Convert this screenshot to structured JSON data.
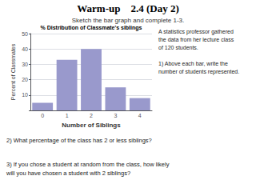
{
  "chart_data": {
    "type": "bar",
    "title": "Warm-up    2.4 (Day 2)",
    "subtitle": "Sketch the bar graph and complete 1-3.",
    "chart_title": "% Distribution of Classmate's siblings",
    "xlabel": "Number of Siblings",
    "ylabel": "Percent of Classmates",
    "categories": [
      0,
      1,
      2,
      3,
      4
    ],
    "values": [
      5,
      33,
      40,
      15,
      8
    ],
    "color": "#9999cc",
    "ylim": [
      0,
      50
    ],
    "yticks": [
      10,
      20,
      30,
      40,
      50
    ],
    "grid": true,
    "annotations": [
      "A statistics professor gathered\nthe data from her lecture class\nof 120 students.\n\n1) Above each bar, write the\nnumber of students represented.",
      "2) What percentage of the class has 2 or less siblings?",
      "3) If you chose a student at random from the class, how likely\nwill you have chosen a student with 2 siblings?"
    ]
  }
}
